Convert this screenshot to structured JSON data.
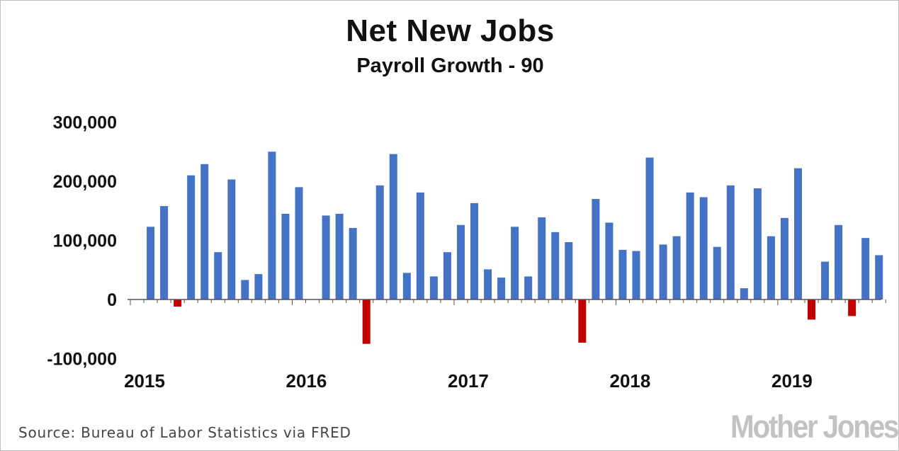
{
  "chart_data": {
    "type": "bar",
    "title": "Net New Jobs",
    "subtitle": "Payroll Growth - 90",
    "xlabel": "",
    "ylabel": "",
    "ylim": [
      -100000,
      300000
    ],
    "yticks": [
      {
        "value": 300000,
        "label": "300,000"
      },
      {
        "value": 200000,
        "label": "200,000"
      },
      {
        "value": 100000,
        "label": "100,000"
      },
      {
        "value": 0,
        "label": "0"
      },
      {
        "value": -100000,
        "label": "-100,000"
      }
    ],
    "xticks": [
      {
        "index": 0,
        "label": "2015"
      },
      {
        "index": 12,
        "label": "2016"
      },
      {
        "index": 24,
        "label": "2017"
      },
      {
        "index": 36,
        "label": "2018"
      },
      {
        "index": 48,
        "label": "2019"
      }
    ],
    "grid": false,
    "legend": "none",
    "positive_color": "#4472c4",
    "negative_color": "#c00000",
    "categories": [
      "2015-01",
      "2015-02",
      "2015-03",
      "2015-04",
      "2015-05",
      "2015-06",
      "2015-07",
      "2015-08",
      "2015-09",
      "2015-10",
      "2015-11",
      "2015-12",
      "2016-01",
      "2016-02",
      "2016-03",
      "2016-04",
      "2016-05",
      "2016-06",
      "2016-07",
      "2016-08",
      "2016-09",
      "2016-10",
      "2016-11",
      "2016-12",
      "2017-01",
      "2017-02",
      "2017-03",
      "2017-04",
      "2017-05",
      "2017-06",
      "2017-07",
      "2017-08",
      "2017-09",
      "2017-10",
      "2017-11",
      "2017-12",
      "2018-01",
      "2018-02",
      "2018-03",
      "2018-04",
      "2018-05",
      "2018-06",
      "2018-07",
      "2018-08",
      "2018-09",
      "2018-10",
      "2018-11",
      "2018-12",
      "2019-01",
      "2019-02",
      "2019-03",
      "2019-04",
      "2019-05",
      "2019-06",
      "2019-07",
      "2019-08"
    ],
    "values": [
      null,
      123000,
      158000,
      -12000,
      210000,
      229000,
      80000,
      203000,
      33000,
      43000,
      250000,
      145000,
      190000,
      null,
      142000,
      145000,
      121000,
      -75000,
      193000,
      246000,
      45000,
      181000,
      39000,
      80000,
      126000,
      163000,
      51000,
      37000,
      123000,
      39000,
      139000,
      114000,
      97000,
      -73000,
      170000,
      130000,
      84000,
      82000,
      240000,
      93000,
      107000,
      181000,
      173000,
      89000,
      193000,
      19000,
      188000,
      107000,
      138000,
      222000,
      -34000,
      64000,
      126000,
      -28000,
      104000,
      75000
    ]
  },
  "source": "Source: Bureau of Labor Statistics via FRED",
  "brand": "Mother Jones"
}
